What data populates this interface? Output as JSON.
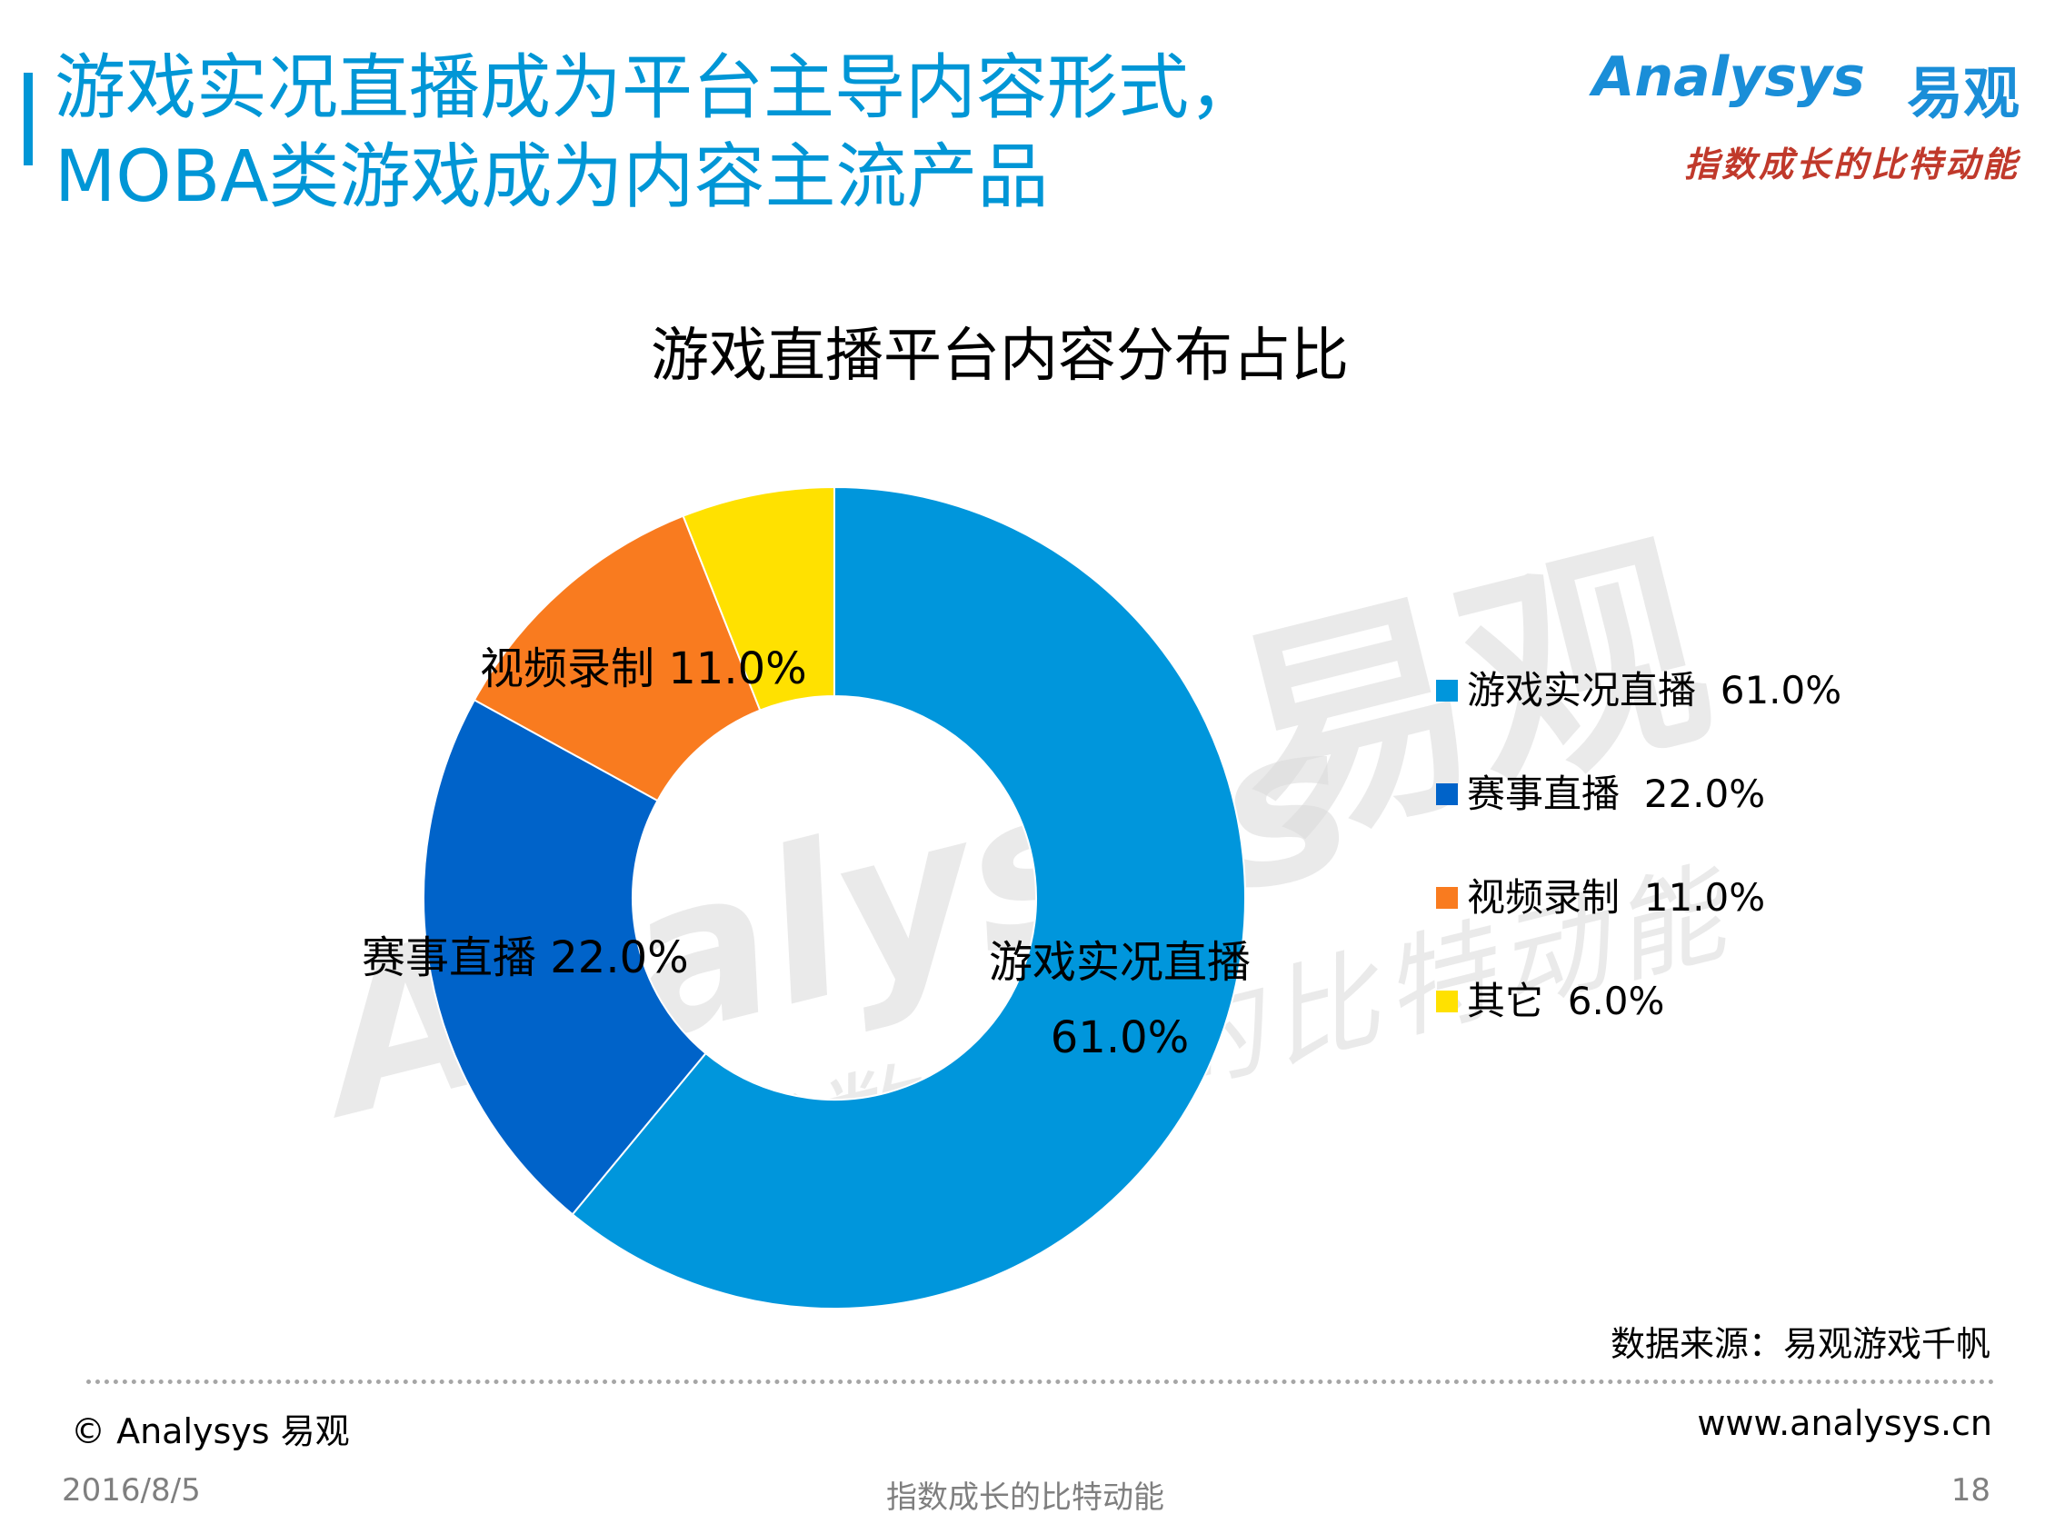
{
  "header": {
    "title_line1": "游戏实况直播成为平台主导内容形式，",
    "title_line2": "MOBA类游戏成为内容主流产品",
    "accent_color": "#0096d6"
  },
  "logo": {
    "wordmark": "Analysys",
    "cn_name": "易观",
    "slogan": "指数成长的比特动能"
  },
  "watermark": {
    "wordmark": "Analysys",
    "cn_name": "易观",
    "slogan": "指数成长的比特动能"
  },
  "chart_data": {
    "type": "pie",
    "variant": "donut",
    "title": "游戏直播平台内容分布占比",
    "categories": [
      "游戏实况直播",
      "赛事直播",
      "视频录制",
      "其它"
    ],
    "values": [
      61.0,
      22.0,
      11.0,
      6.0
    ],
    "value_labels": [
      "61.0%",
      "22.0%",
      "11.0%",
      "6.0%"
    ],
    "colors": [
      "#0096dc",
      "#0063c9",
      "#f97b1f",
      "#ffe100"
    ],
    "slice_labels_shown": [
      "游戏实况直播",
      "赛事直播",
      "视频录制"
    ],
    "legend_position": "right"
  },
  "source": "数据来源：易观游戏千帆",
  "footer": {
    "copyright": "© Analysys 易观",
    "website": "www.analysys.cn",
    "date": "2016/8/5",
    "slogan": "指数成长的比特动能",
    "page": "18"
  }
}
